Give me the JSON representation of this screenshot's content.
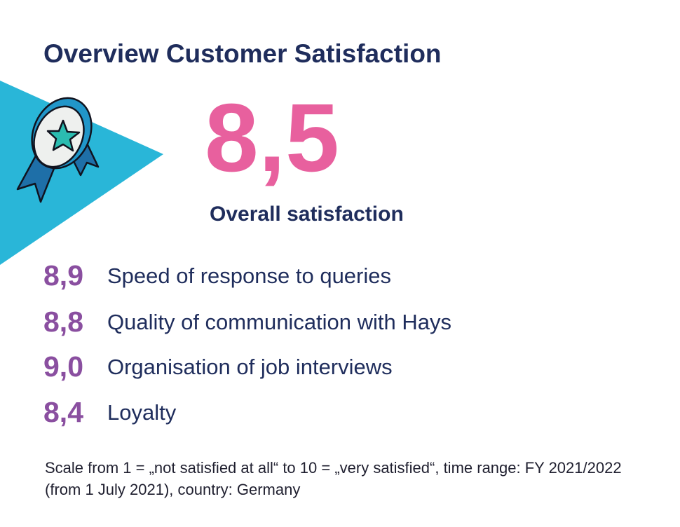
{
  "header": {
    "title": "Overview Customer Satisfaction"
  },
  "overall": {
    "value": "8,5",
    "label": "Overall satisfaction"
  },
  "items": [
    {
      "value": "8,9",
      "label": "Speed of response to queries"
    },
    {
      "value": "8,8",
      "label": "Quality of communication with Hays"
    },
    {
      "value": "9,0",
      "label": "Organisation of job interviews"
    },
    {
      "value": "8,4",
      "label": "Loyalty"
    }
  ],
  "footnote": "Scale from 1 = „not satisfied at all“ to 10 = „very satisfied“, time range: FY 2021/2022 (from 1 July 2021), country: Germany"
}
